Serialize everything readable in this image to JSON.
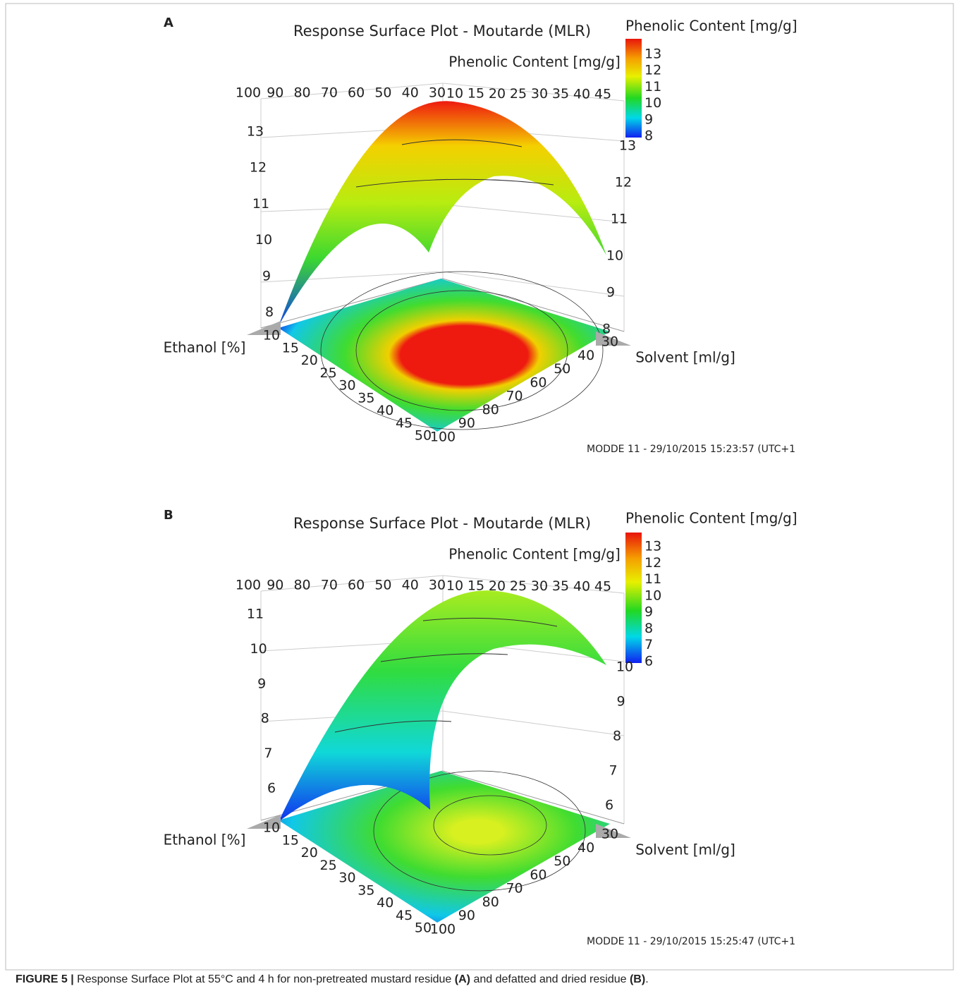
{
  "figure": {
    "panels": [
      {
        "letter": "A",
        "title": "Response Surface Plot - Moutarde (MLR)",
        "z_label": "Phenolic Content [mg/g]",
        "colorbar_label": "Phenolic Content [mg/g]",
        "colorbar_ticks": [
          13,
          12,
          11,
          10,
          9,
          8
        ],
        "back_solvent_ticks": [
          100,
          90,
          80,
          70,
          60,
          50,
          40,
          30
        ],
        "back_ethanol_ticks": [
          10,
          15,
          20,
          25,
          30,
          35,
          40,
          45
        ],
        "left_z_ticks": [
          13,
          12,
          11,
          10,
          9,
          8
        ],
        "right_z_ticks": [
          13,
          12,
          11,
          10,
          9,
          8
        ],
        "ethanol_label": "Ethanol [%]",
        "ethanol_ticks": [
          10,
          15,
          20,
          25,
          30,
          35,
          40,
          45,
          50
        ],
        "solvent_label": "Solvent [ml/g]",
        "solvent_ticks": [
          30,
          40,
          50,
          60,
          70,
          80,
          90,
          100
        ],
        "footer": "MODDE 11 - 29/10/2015 15:23:57 (UTC+1"
      },
      {
        "letter": "B",
        "title": "Response Surface Plot - Moutarde (MLR)",
        "z_label": "Phenolic Content [mg/g]",
        "colorbar_label": "Phenolic Content [mg/g]",
        "colorbar_ticks": [
          13,
          12,
          11,
          10,
          9,
          8,
          7,
          6
        ],
        "back_solvent_ticks": [
          100,
          90,
          80,
          70,
          60,
          50,
          40,
          30
        ],
        "back_ethanol_ticks": [
          10,
          15,
          20,
          25,
          30,
          35,
          40,
          45
        ],
        "left_z_ticks": [
          11,
          10,
          9,
          8,
          7,
          6
        ],
        "right_z_ticks": [
          10,
          9,
          8,
          7,
          6
        ],
        "ethanol_label": "Ethanol [%]",
        "ethanol_ticks": [
          10,
          15,
          20,
          25,
          30,
          35,
          40,
          45,
          50
        ],
        "solvent_label": "Solvent [ml/g]",
        "solvent_ticks": [
          30,
          40,
          50,
          60,
          70,
          80,
          90,
          100
        ],
        "footer": "MODDE 11 - 29/10/2015 15:25:47 (UTC+1"
      }
    ],
    "caption": [
      "FIGURE 5 |",
      "Response Surface Plot at 55°C and 4 h for non-pretreated mustard residue",
      "(A)",
      "and defatted and dried residue",
      "(B)",
      "."
    ]
  }
}
